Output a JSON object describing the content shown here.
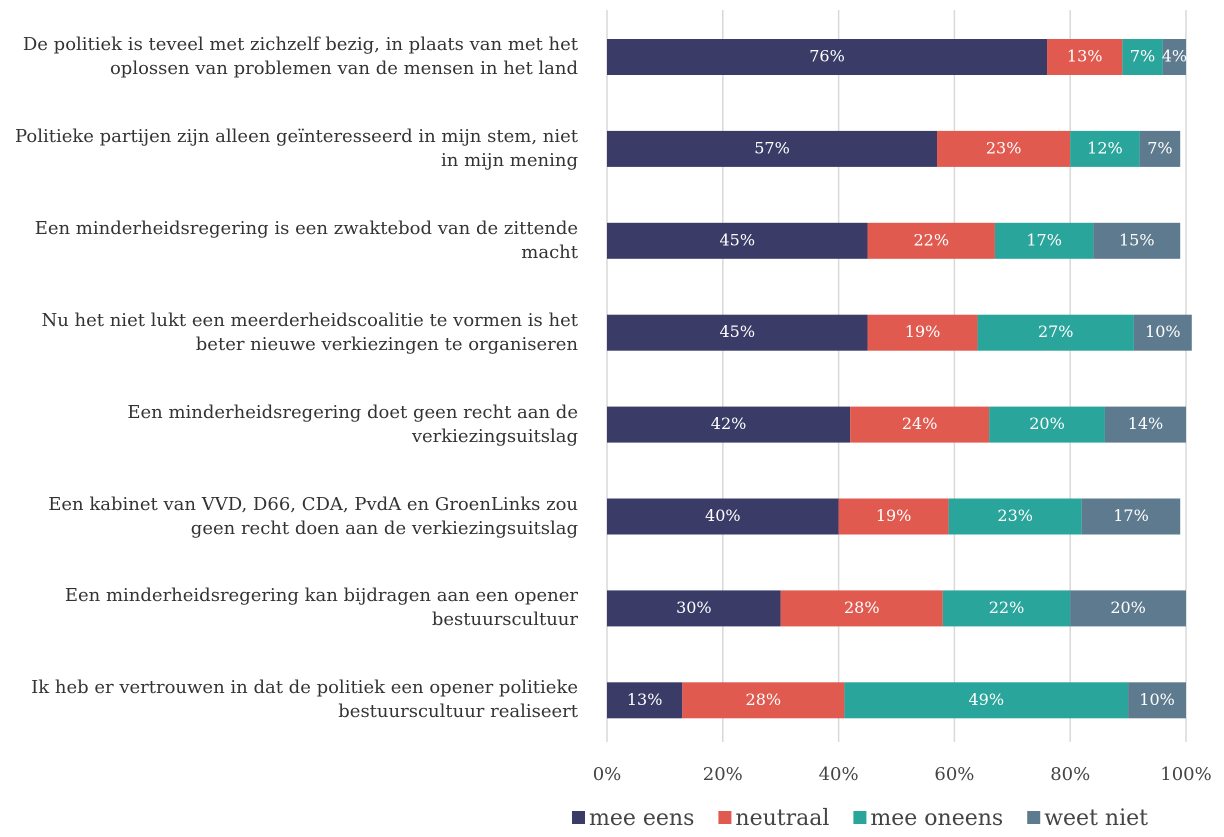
{
  "chart_data": {
    "type": "stacked_barh",
    "categories": [
      "De politiek is teveel met zichzelf bezig, in plaats van met het oplossen van problemen van de mensen in het land",
      "Politieke partijen zijn alleen geïnteresseerd in mijn stem, niet in mijn mening",
      "Een minderheidsregering is een zwaktebod van de zittende macht",
      "Nu het niet lukt een meerderheidscoalitie te vormen is het beter nieuwe verkiezingen te organiseren",
      "Een minderheidsregering doet geen recht aan de verkiezingsuitslag",
      "Een kabinet van VVD, D66, CDA, PvdA en GroenLinks zou geen recht doen aan de verkiezingsuitslag",
      "Een minderheidsregering kan bijdragen aan een opener bestuurscultuur",
      "Ik heb er vertrouwen in dat de politiek een opener politieke bestuurscultuur realiseert"
    ],
    "series": [
      {
        "name": "mee eens",
        "color": "#3a3c67",
        "values": [
          76,
          57,
          45,
          45,
          42,
          40,
          30,
          13
        ],
        "value_labels": [
          "76%",
          "57%",
          "45%",
          "45%",
          "42%",
          "40%",
          "30%",
          "13%"
        ]
      },
      {
        "name": "neutraal",
        "color": "#e05a50",
        "values": [
          13,
          23,
          22,
          19,
          24,
          19,
          28,
          28
        ],
        "value_labels": [
          "13%",
          "23%",
          "22%",
          "19%",
          "24%",
          "19%",
          "28%",
          "28%"
        ]
      },
      {
        "name": "mee oneens",
        "color": "#2aa59b",
        "values": [
          7,
          12,
          17,
          27,
          20,
          23,
          22,
          49
        ],
        "value_labels": [
          "7%",
          "12%",
          "17%",
          "27%",
          "20%",
          "23%",
          "22%",
          "49%"
        ]
      },
      {
        "name": "weet niet",
        "color": "#5e7a8e",
        "values": [
          4,
          7,
          15,
          10,
          14,
          17,
          20,
          10
        ],
        "value_labels": [
          "4%",
          "7%",
          "15%",
          "10%",
          "14%",
          "17%",
          "20%",
          "10%"
        ]
      }
    ],
    "xlim": [
      0,
      100
    ],
    "xticks": [
      {
        "value": 0,
        "label": "0%"
      },
      {
        "value": 20,
        "label": "20%"
      },
      {
        "value": 40,
        "label": "40%"
      },
      {
        "value": 60,
        "label": "60%"
      },
      {
        "value": 80,
        "label": "80%"
      },
      {
        "value": 100,
        "label": "100%"
      }
    ],
    "grid": true,
    "legend": "bottom"
  }
}
